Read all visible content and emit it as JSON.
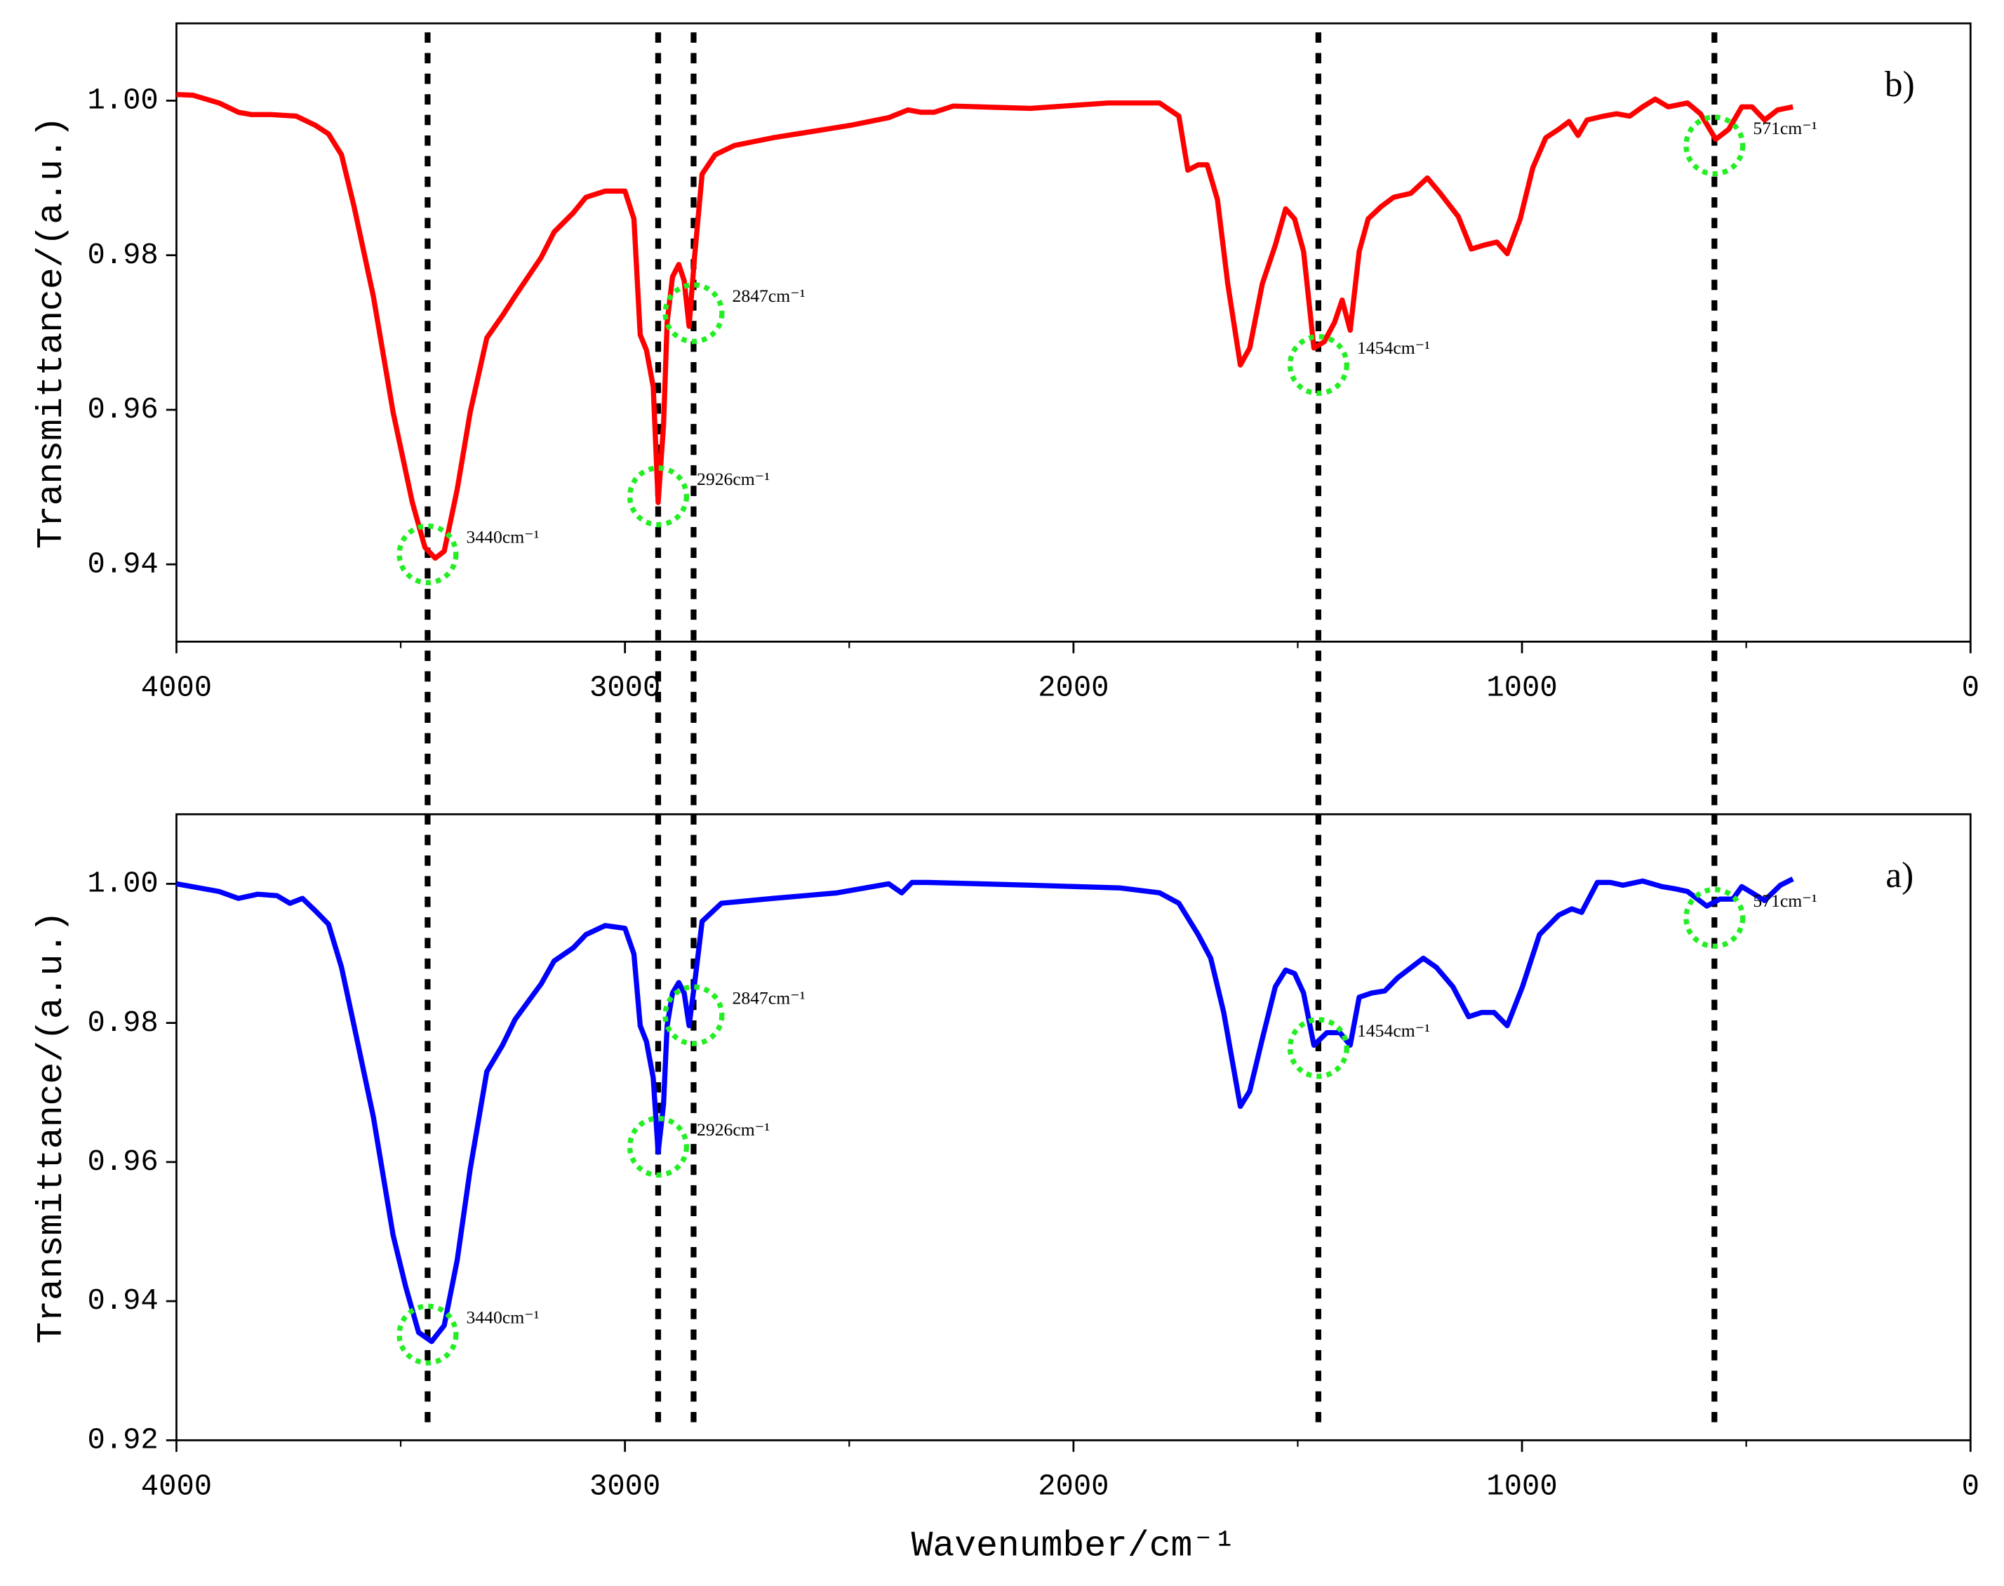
{
  "chart_data": [
    {
      "type": "line",
      "panel_label": "b)",
      "ylabel": "Transmittance/(a.u.)",
      "xlim": [
        4000,
        0
      ],
      "xticks": [
        4000,
        3000,
        2000,
        1000,
        0
      ],
      "xticks_minor": [
        3500,
        2500,
        1500,
        500
      ],
      "ylim": [
        0.93,
        1.01
      ],
      "yticks": [
        {
          "value": 1.0,
          "label": "1.00"
        },
        {
          "value": 0.98,
          "label": "0.98"
        },
        {
          "value": 0.96,
          "label": "0.96"
        },
        {
          "value": 0.94,
          "label": "0.94"
        }
      ],
      "x": [
        4000,
        3963,
        3905,
        3862,
        3833,
        3790,
        3733,
        3690,
        3661,
        3632,
        3604,
        3561,
        3517,
        3474,
        3446,
        3423,
        3403,
        3374,
        3345,
        3308,
        3273,
        3245,
        3187,
        3158,
        3115,
        3087,
        3044,
        3000,
        2980,
        2966,
        2952,
        2937,
        2926,
        2914,
        2906,
        2894,
        2880,
        2868,
        2857,
        2845,
        2828,
        2799,
        2756,
        2670,
        2584,
        2498,
        2412,
        2369,
        2340,
        2311,
        2268,
        2096,
        1923,
        1808,
        1765,
        1745,
        1722,
        1702,
        1679,
        1656,
        1628,
        1607,
        1579,
        1550,
        1527,
        1507,
        1487,
        1464,
        1441,
        1418,
        1401,
        1383,
        1363,
        1343,
        1314,
        1286,
        1248,
        1211,
        1182,
        1142,
        1113,
        1085,
        1056,
        1033,
        1004,
        976,
        947,
        918,
        895,
        875,
        855,
        818,
        789,
        760,
        731,
        703,
        674,
        631,
        602,
        568,
        539,
        510,
        487,
        459,
        430,
        396
      ],
      "series": [
        {
          "name": "b",
          "color": "#ff0000",
          "values": [
            1.0008,
            1.0007,
            0.9997,
            0.9985,
            0.9982,
            0.9982,
            0.998,
            0.9968,
            0.9957,
            0.993,
            0.9863,
            0.9747,
            0.9597,
            0.948,
            0.9422,
            0.9408,
            0.9417,
            0.9497,
            0.9597,
            0.9693,
            0.9722,
            0.9747,
            0.9797,
            0.983,
            0.9855,
            0.9875,
            0.9883,
            0.9883,
            0.9847,
            0.9697,
            0.9677,
            0.963,
            0.948,
            0.958,
            0.9713,
            0.9772,
            0.9788,
            0.9767,
            0.9708,
            0.9797,
            0.9905,
            0.993,
            0.9942,
            0.9952,
            0.996,
            0.9968,
            0.9978,
            0.9988,
            0.9985,
            0.9985,
            0.9993,
            0.999,
            0.9997,
            0.9997,
            0.998,
            0.991,
            0.9917,
            0.9917,
            0.9872,
            0.9763,
            0.9658,
            0.968,
            0.9763,
            0.9813,
            0.986,
            0.9847,
            0.9805,
            0.968,
            0.9688,
            0.9713,
            0.9742,
            0.9703,
            0.9805,
            0.9847,
            0.9863,
            0.9875,
            0.988,
            0.99,
            0.988,
            0.985,
            0.9808,
            0.9813,
            0.9817,
            0.9802,
            0.9847,
            0.9913,
            0.9952,
            0.9963,
            0.9973,
            0.9955,
            0.9975,
            0.998,
            0.9983,
            0.998,
            0.9992,
            1.0002,
            0.9992,
            0.9997,
            0.9983,
            0.995,
            0.9963,
            0.9992,
            0.9992,
            0.9975,
            0.9988,
            0.9992
          ]
        }
      ],
      "annotations": [
        {
          "text": "3440cm⁻¹",
          "x": 3440,
          "y": 0.9413
        },
        {
          "text": "2926cm⁻¹",
          "x": 2926,
          "y": 0.9488
        },
        {
          "text": "2847cm⁻¹",
          "x": 2847,
          "y": 0.9725
        },
        {
          "text": "1454cm⁻¹",
          "x": 1454,
          "y": 0.9658
        },
        {
          "text": "571cm⁻¹",
          "x": 571,
          "y": 0.9942
        }
      ]
    },
    {
      "type": "line",
      "panel_label": "a)",
      "ylabel": "Transmittance/(a.u.)",
      "xlabel": "Wavenumber/cm⁻¹",
      "xlim": [
        4000,
        0
      ],
      "xticks": [
        4000,
        3000,
        2000,
        1000,
        0
      ],
      "xticks_minor": [
        3500,
        2500,
        1500,
        500
      ],
      "ylim": [
        0.92,
        1.01
      ],
      "yticks": [
        {
          "value": 1.0,
          "label": "1.00"
        },
        {
          "value": 0.98,
          "label": "0.98"
        },
        {
          "value": 0.96,
          "label": "0.96"
        },
        {
          "value": 0.94,
          "label": "0.94"
        },
        {
          "value": 0.92,
          "label": "0.92"
        }
      ],
      "x": [
        4000,
        3905,
        3862,
        3819,
        3776,
        3747,
        3719,
        3690,
        3661,
        3632,
        3604,
        3561,
        3517,
        3489,
        3460,
        3431,
        3403,
        3374,
        3345,
        3308,
        3273,
        3245,
        3187,
        3158,
        3115,
        3087,
        3044,
        3000,
        2980,
        2966,
        2952,
        2937,
        2926,
        2914,
        2906,
        2894,
        2880,
        2868,
        2857,
        2842,
        2828,
        2785,
        2670,
        2527,
        2412,
        2383,
        2360,
        2326,
        2096,
        1895,
        1808,
        1765,
        1722,
        1694,
        1665,
        1628,
        1607,
        1579,
        1550,
        1527,
        1507,
        1487,
        1464,
        1435,
        1406,
        1383,
        1363,
        1335,
        1306,
        1277,
        1220,
        1191,
        1154,
        1119,
        1090,
        1062,
        1033,
        999,
        961,
        918,
        889,
        867,
        832,
        803,
        775,
        731,
        688,
        660,
        631,
        588,
        559,
        530,
        510,
        487,
        459,
        424,
        396
      ],
      "series": [
        {
          "name": "a",
          "color": "#0000ff",
          "values": [
            1.0,
            0.9989,
            0.9979,
            0.9985,
            0.9983,
            0.9972,
            0.9979,
            0.9961,
            0.9942,
            0.988,
            0.9796,
            0.9665,
            0.9495,
            0.9421,
            0.9355,
            0.9342,
            0.9365,
            0.9459,
            0.959,
            0.973,
            0.9768,
            0.9805,
            0.9856,
            0.9889,
            0.9908,
            0.9927,
            0.994,
            0.9936,
            0.9899,
            0.9796,
            0.9773,
            0.9721,
            0.9614,
            0.9683,
            0.9796,
            0.9843,
            0.9858,
            0.9843,
            0.9796,
            0.9871,
            0.9946,
            0.9972,
            0.9979,
            0.9987,
            1.0,
            0.9987,
            1.0002,
            1.0002,
            0.9998,
            0.9994,
            0.9987,
            0.9972,
            0.9927,
            0.9893,
            0.9815,
            0.968,
            0.9702,
            0.9777,
            0.9852,
            0.9876,
            0.9871,
            0.9843,
            0.9768,
            0.9786,
            0.9786,
            0.9768,
            0.9837,
            0.9843,
            0.9846,
            0.9865,
            0.9893,
            0.988,
            0.9852,
            0.9809,
            0.9815,
            0.9815,
            0.9796,
            0.9852,
            0.9927,
            0.9955,
            0.9964,
            0.9959,
            1.0002,
            1.0002,
            0.9998,
            1.0004,
            0.9996,
            0.9993,
            0.9989,
            0.9968,
            0.9978,
            0.9978,
            0.9996,
            0.9987,
            0.9976,
            0.9998,
            1.0007
          ]
        }
      ],
      "annotations": [
        {
          "text": "3440cm⁻¹",
          "x": 3440,
          "y": 0.9352
        },
        {
          "text": "2926cm⁻¹",
          "x": 2926,
          "y": 0.9622
        },
        {
          "text": "2847cm⁻¹",
          "x": 2847,
          "y": 0.9811
        },
        {
          "text": "1454cm⁻¹",
          "x": 1454,
          "y": 0.9764
        },
        {
          "text": "571cm⁻¹",
          "x": 571,
          "y": 0.9951
        }
      ]
    }
  ]
}
